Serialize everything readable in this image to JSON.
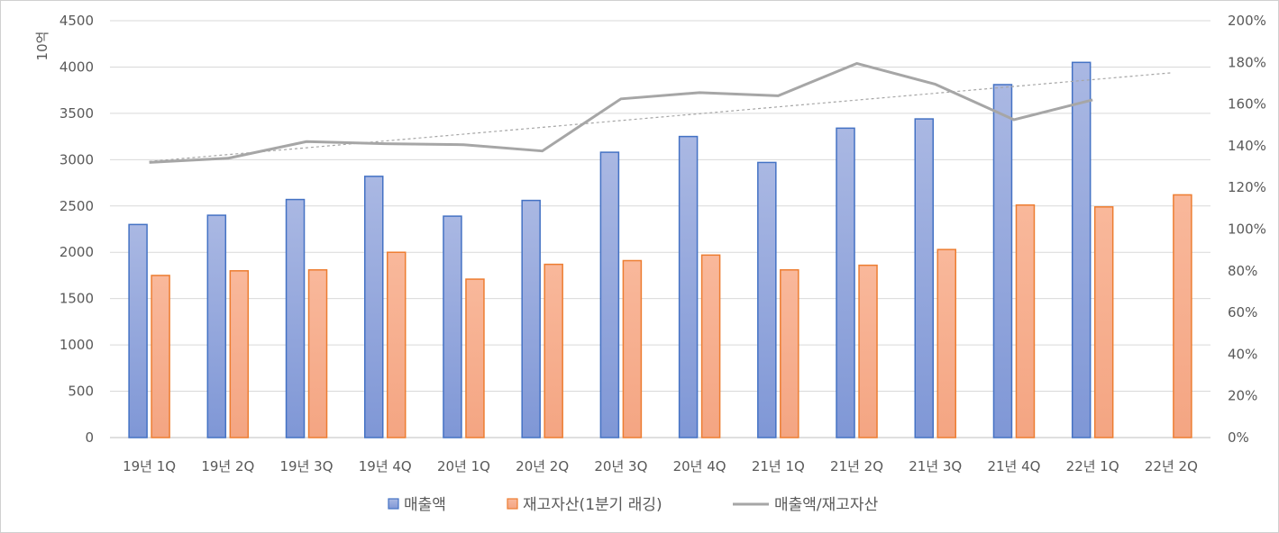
{
  "chart_data": {
    "type": "bar",
    "y_unit_label": "10억",
    "categories": [
      "19년 1Q",
      "19년 2Q",
      "19년 3Q",
      "19년 4Q",
      "20년 1Q",
      "20년 2Q",
      "20년 3Q",
      "20년 4Q",
      "21년 1Q",
      "21년 2Q",
      "21년 3Q",
      "21년 4Q",
      "22년 1Q",
      "22년 2Q"
    ],
    "ylim": [
      0,
      4500
    ],
    "yticks": [
      0,
      500,
      1000,
      1500,
      2000,
      2500,
      3000,
      3500,
      4000,
      4500
    ],
    "y2lim": [
      0,
      200
    ],
    "y2ticks": [
      "0%",
      "20%",
      "40%",
      "60%",
      "80%",
      "100%",
      "120%",
      "140%",
      "160%",
      "180%",
      "200%"
    ],
    "grid": true,
    "legend_position": "bottom",
    "series": [
      {
        "name": "매출액",
        "kind": "bar",
        "axis": "left",
        "color": "#7f97d6",
        "values": [
          2300,
          2400,
          2570,
          2820,
          2390,
          2560,
          3080,
          3250,
          2970,
          3340,
          3440,
          3810,
          4050,
          null
        ]
      },
      {
        "name": "재고자산(1분기 래깅)",
        "kind": "bar",
        "axis": "left",
        "color": "#f4a582",
        "values": [
          1750,
          1800,
          1810,
          2000,
          1710,
          1870,
          1910,
          1970,
          1810,
          1860,
          2030,
          2510,
          2490,
          2620
        ]
      },
      {
        "name": "매출액/재고자산",
        "kind": "line",
        "axis": "right",
        "color": "#a6a6a6",
        "values": [
          132,
          134,
          142,
          141,
          140.5,
          137.5,
          162.5,
          165.5,
          164,
          179.5,
          169.5,
          152.5,
          162,
          null
        ]
      }
    ],
    "trendline": {
      "series": "매출액/재고자산",
      "type": "linear",
      "style": "dotted",
      "color": "#a6a6a6",
      "values": [
        132.5,
        175
      ]
    }
  }
}
